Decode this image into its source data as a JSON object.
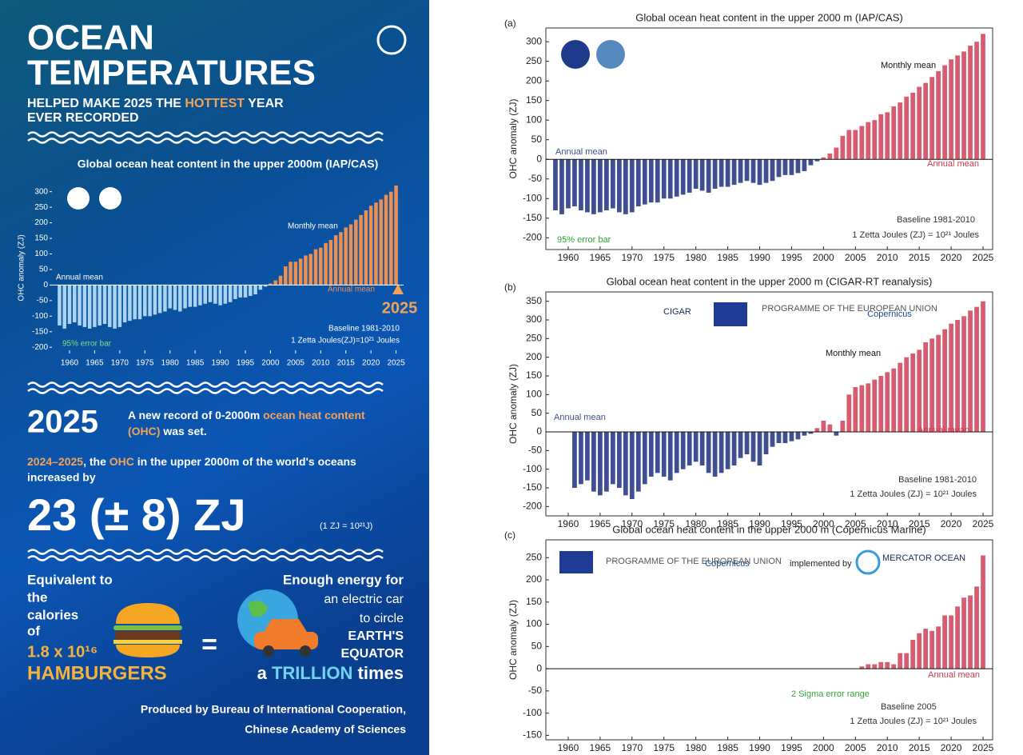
{
  "infographic": {
    "title_lines": [
      "OCEAN",
      "TEMPERATURES"
    ],
    "subtitle": {
      "before": "HELPED MAKE 2025 THE ",
      "highlight": "HOTTEST",
      "after": " YEAR",
      "line2": "EVER RECORDED"
    },
    "record": {
      "year": "2025",
      "line1_a": "A new record of 0-2000m ",
      "line1_b": "ocean heat content",
      "line2_a": "(OHC)",
      "line2_b": " was set."
    },
    "increase": {
      "period": "2024–2025",
      "text_a": ", the ",
      "ohc": "OHC",
      "text_b": " in the upper 2000m of the world's oceans",
      "line2": "increased by",
      "amount": "23 (± 8) ZJ",
      "unit_note": "(1 ZJ = 10²¹J)"
    },
    "equivalent_lines": [
      "Equivalent to",
      "the",
      "calories",
      "of"
    ],
    "hamburger_count": "1.8 x 10¹⁶",
    "hamburgers": "HAMBURGERS",
    "equals": "=",
    "energy_lines": [
      "Enough energy for",
      "an electric car",
      "to circle",
      "EARTH'S",
      "EQUATOR"
    ],
    "trillion": {
      "a": "a ",
      "b": "TRILLION",
      "c": " times"
    },
    "producer_lines": [
      "Produced by Bureau of International Cooperation,",
      "Chinese Academy of Sciences"
    ],
    "year_marker": "2025"
  },
  "chart_data": [
    {
      "type": "bar",
      "title": "Global ocean heat content in the upper 2000m (IAP/CAS)",
      "ylabel": "OHC anomaly (ZJ)",
      "x": [
        1958,
        1959,
        1960,
        1961,
        1962,
        1963,
        1964,
        1965,
        1966,
        1967,
        1968,
        1969,
        1970,
        1971,
        1972,
        1973,
        1974,
        1975,
        1976,
        1977,
        1978,
        1979,
        1980,
        1981,
        1982,
        1983,
        1984,
        1985,
        1986,
        1987,
        1988,
        1989,
        1990,
        1991,
        1992,
        1993,
        1994,
        1995,
        1996,
        1997,
        1998,
        1999,
        2000,
        2001,
        2002,
        2003,
        2004,
        2005,
        2006,
        2007,
        2008,
        2009,
        2010,
        2011,
        2012,
        2013,
        2014,
        2015,
        2016,
        2017,
        2018,
        2019,
        2020,
        2021,
        2022,
        2023,
        2024,
        2025
      ],
      "values": [
        -130,
        -140,
        -125,
        -120,
        -130,
        -135,
        -140,
        -135,
        -130,
        -125,
        -135,
        -140,
        -135,
        -120,
        -115,
        -110,
        -110,
        -100,
        -100,
        -95,
        -90,
        -85,
        -75,
        -80,
        -85,
        -75,
        -70,
        -70,
        -65,
        -60,
        -55,
        -60,
        -65,
        -60,
        -55,
        -45,
        -40,
        -40,
        -35,
        -30,
        -15,
        -5,
        5,
        15,
        30,
        60,
        75,
        75,
        85,
        95,
        100,
        115,
        120,
        135,
        145,
        160,
        170,
        185,
        195,
        210,
        225,
        240,
        255,
        265,
        275,
        290,
        300,
        320
      ],
      "colors": {
        "below": "#a9d3ee",
        "above": "#ec8f52"
      },
      "xlim": [
        1956.5,
        2026.5
      ],
      "xticks": [
        1960,
        1965,
        1970,
        1975,
        1980,
        1985,
        1990,
        1995,
        2000,
        2005,
        2010,
        2015,
        2020,
        2025
      ],
      "ylim": [
        -220,
        330
      ],
      "yticks": [
        -200,
        -150,
        -100,
        -50,
        0,
        50,
        100,
        150,
        200,
        250,
        300
      ],
      "annotations": [
        {
          "text": "Annual mean",
          "color": "#ffffff"
        },
        {
          "text": "Monthly mean",
          "color": "#ffffff"
        },
        {
          "text": "Annual mean",
          "color": "#ec8f52"
        },
        {
          "text": "95% error bar",
          "color": "#7ee07e"
        },
        {
          "text": "Baseline 1981-2010",
          "color": "#ffffff"
        },
        {
          "text": "1 Zetta Joules(ZJ)=10²¹ Joules",
          "color": "#ffffff"
        }
      ]
    },
    {
      "type": "bar",
      "panel": "(a)",
      "title": "Global ocean heat content in the upper 2000 m (IAP/CAS)",
      "ylabel": "OHC anomaly (ZJ)",
      "x": [
        1958,
        1959,
        1960,
        1961,
        1962,
        1963,
        1964,
        1965,
        1966,
        1967,
        1968,
        1969,
        1970,
        1971,
        1972,
        1973,
        1974,
        1975,
        1976,
        1977,
        1978,
        1979,
        1980,
        1981,
        1982,
        1983,
        1984,
        1985,
        1986,
        1987,
        1988,
        1989,
        1990,
        1991,
        1992,
        1993,
        1994,
        1995,
        1996,
        1997,
        1998,
        1999,
        2000,
        2001,
        2002,
        2003,
        2004,
        2005,
        2006,
        2007,
        2008,
        2009,
        2010,
        2011,
        2012,
        2013,
        2014,
        2015,
        2016,
        2017,
        2018,
        2019,
        2020,
        2021,
        2022,
        2023,
        2024,
        2025
      ],
      "values": [
        -130,
        -140,
        -125,
        -120,
        -130,
        -135,
        -140,
        -135,
        -130,
        -125,
        -135,
        -140,
        -135,
        -120,
        -115,
        -110,
        -110,
        -100,
        -100,
        -95,
        -90,
        -85,
        -75,
        -80,
        -85,
        -75,
        -70,
        -70,
        -65,
        -60,
        -55,
        -60,
        -65,
        -60,
        -55,
        -45,
        -40,
        -40,
        -35,
        -30,
        -15,
        -5,
        5,
        15,
        30,
        60,
        75,
        75,
        85,
        95,
        100,
        115,
        120,
        135,
        145,
        160,
        170,
        185,
        195,
        210,
        225,
        240,
        255,
        265,
        275,
        290,
        300,
        320
      ],
      "colors": {
        "below": "#3f4f8f",
        "above": "#d95b70"
      },
      "xlim": [
        1956.5,
        2026.5
      ],
      "xticks": [
        1960,
        1965,
        1970,
        1975,
        1980,
        1985,
        1990,
        1995,
        2000,
        2005,
        2010,
        2015,
        2020,
        2025
      ],
      "ylim": [
        -230,
        335
      ],
      "yticks": [
        -200,
        -150,
        -100,
        -50,
        0,
        50,
        100,
        150,
        200,
        250,
        300
      ],
      "annotations": [
        {
          "text": "Annual mean",
          "color": "#3f4f8f"
        },
        {
          "text": "Monthly mean",
          "color": "#111111"
        },
        {
          "text": "Annual mean",
          "color": "#d0384f"
        },
        {
          "text": "95% error bar",
          "color": "#2fa82f"
        },
        {
          "text": "Baseline 1981-2010",
          "color": "#333333"
        },
        {
          "text": "1 Zetta Joules (ZJ) = 10²¹ Joules",
          "color": "#333333"
        }
      ]
    },
    {
      "type": "bar",
      "panel": "(b)",
      "title": "Global ocean heat content in the upper 2000 m (CIGAR-RT reanalysis)",
      "ylabel": "OHC anomaly (ZJ)",
      "x": [
        1961,
        1962,
        1963,
        1964,
        1965,
        1966,
        1967,
        1968,
        1969,
        1970,
        1971,
        1972,
        1973,
        1974,
        1975,
        1976,
        1977,
        1978,
        1979,
        1980,
        1981,
        1982,
        1983,
        1984,
        1985,
        1986,
        1987,
        1988,
        1989,
        1990,
        1991,
        1992,
        1993,
        1994,
        1995,
        1996,
        1997,
        1998,
        1999,
        2000,
        2001,
        2002,
        2003,
        2004,
        2005,
        2006,
        2007,
        2008,
        2009,
        2010,
        2011,
        2012,
        2013,
        2014,
        2015,
        2016,
        2017,
        2018,
        2019,
        2020,
        2021,
        2022,
        2023,
        2024,
        2025
      ],
      "values": [
        -150,
        -140,
        -130,
        -160,
        -170,
        -160,
        -140,
        -150,
        -170,
        -180,
        -160,
        -140,
        -120,
        -110,
        -120,
        -130,
        -110,
        -100,
        -90,
        -80,
        -90,
        -110,
        -120,
        -110,
        -100,
        -90,
        -70,
        -60,
        -80,
        -90,
        -60,
        -40,
        -30,
        -30,
        -25,
        -20,
        -10,
        -5,
        10,
        30,
        20,
        -10,
        30,
        100,
        120,
        125,
        130,
        140,
        150,
        160,
        170,
        185,
        200,
        210,
        220,
        240,
        250,
        260,
        275,
        290,
        300,
        310,
        325,
        335,
        350
      ],
      "colors": {
        "below": "#3f4f8f",
        "above": "#d95b70"
      },
      "xlim": [
        1956.5,
        2026.5
      ],
      "xticks": [
        1960,
        1965,
        1970,
        1975,
        1980,
        1985,
        1990,
        1995,
        2000,
        2005,
        2010,
        2015,
        2020,
        2025
      ],
      "ylim": [
        -225,
        375
      ],
      "yticks": [
        -200,
        -150,
        -100,
        -50,
        0,
        50,
        100,
        150,
        200,
        250,
        300,
        350
      ],
      "annotations": [
        {
          "text": "Annual mean",
          "color": "#3f4f8f"
        },
        {
          "text": "Monthly mean",
          "color": "#111111"
        },
        {
          "text": "Annual mean",
          "color": "#d0384f"
        },
        {
          "text": "Baseline 1981-2010",
          "color": "#333333"
        },
        {
          "text": "1 Zetta Joules (ZJ) = 10²¹ Joules",
          "color": "#333333"
        },
        {
          "text": "PROGRAMME OF THE EUROPEAN UNION",
          "color": "#555555"
        },
        {
          "text": "CIGAR",
          "color": "#1a2a5a"
        },
        {
          "text": "Copernicus",
          "color": "#1a4a8a"
        }
      ]
    },
    {
      "type": "bar",
      "panel": "(c)",
      "title": "Global ocean heat content in the upper 2000 m (Copernicus Marine)",
      "ylabel": "OHC anomaly (ZJ)",
      "x": [
        2006,
        2007,
        2008,
        2009,
        2010,
        2011,
        2012,
        2013,
        2014,
        2015,
        2016,
        2017,
        2018,
        2019,
        2020,
        2021,
        2022,
        2023,
        2024,
        2025
      ],
      "values": [
        5,
        10,
        10,
        15,
        15,
        10,
        35,
        35,
        65,
        80,
        90,
        85,
        95,
        120,
        120,
        140,
        160,
        165,
        185,
        255
      ],
      "colors": {
        "below": "#3f4f8f",
        "above": "#d95b70"
      },
      "xlim": [
        1956.5,
        2026.5
      ],
      "xticks": [
        1960,
        1965,
        1970,
        1975,
        1980,
        1985,
        1990,
        1995,
        2000,
        2005,
        2010,
        2015,
        2020,
        2025
      ],
      "ylim": [
        -160,
        290
      ],
      "yticks": [
        -150,
        -100,
        -50,
        0,
        50,
        100,
        150,
        200,
        250
      ],
      "annotations": [
        {
          "text": "Annual mean",
          "color": "#d0384f"
        },
        {
          "text": "2 Sigma error range",
          "color": "#2fa82f"
        },
        {
          "text": "Baseline 2005",
          "color": "#333333"
        },
        {
          "text": "1 Zetta Joules (ZJ) = 10²¹ Joules",
          "color": "#333333"
        },
        {
          "text": "PROGRAMME OF THE EUROPEAN UNION",
          "color": "#555555"
        },
        {
          "text": "implemented by",
          "color": "#222222"
        },
        {
          "text": "MERCATOR OCEAN",
          "color": "#1a2a5a"
        },
        {
          "text": "Copernicus",
          "color": "#1a4a8a"
        }
      ]
    }
  ]
}
